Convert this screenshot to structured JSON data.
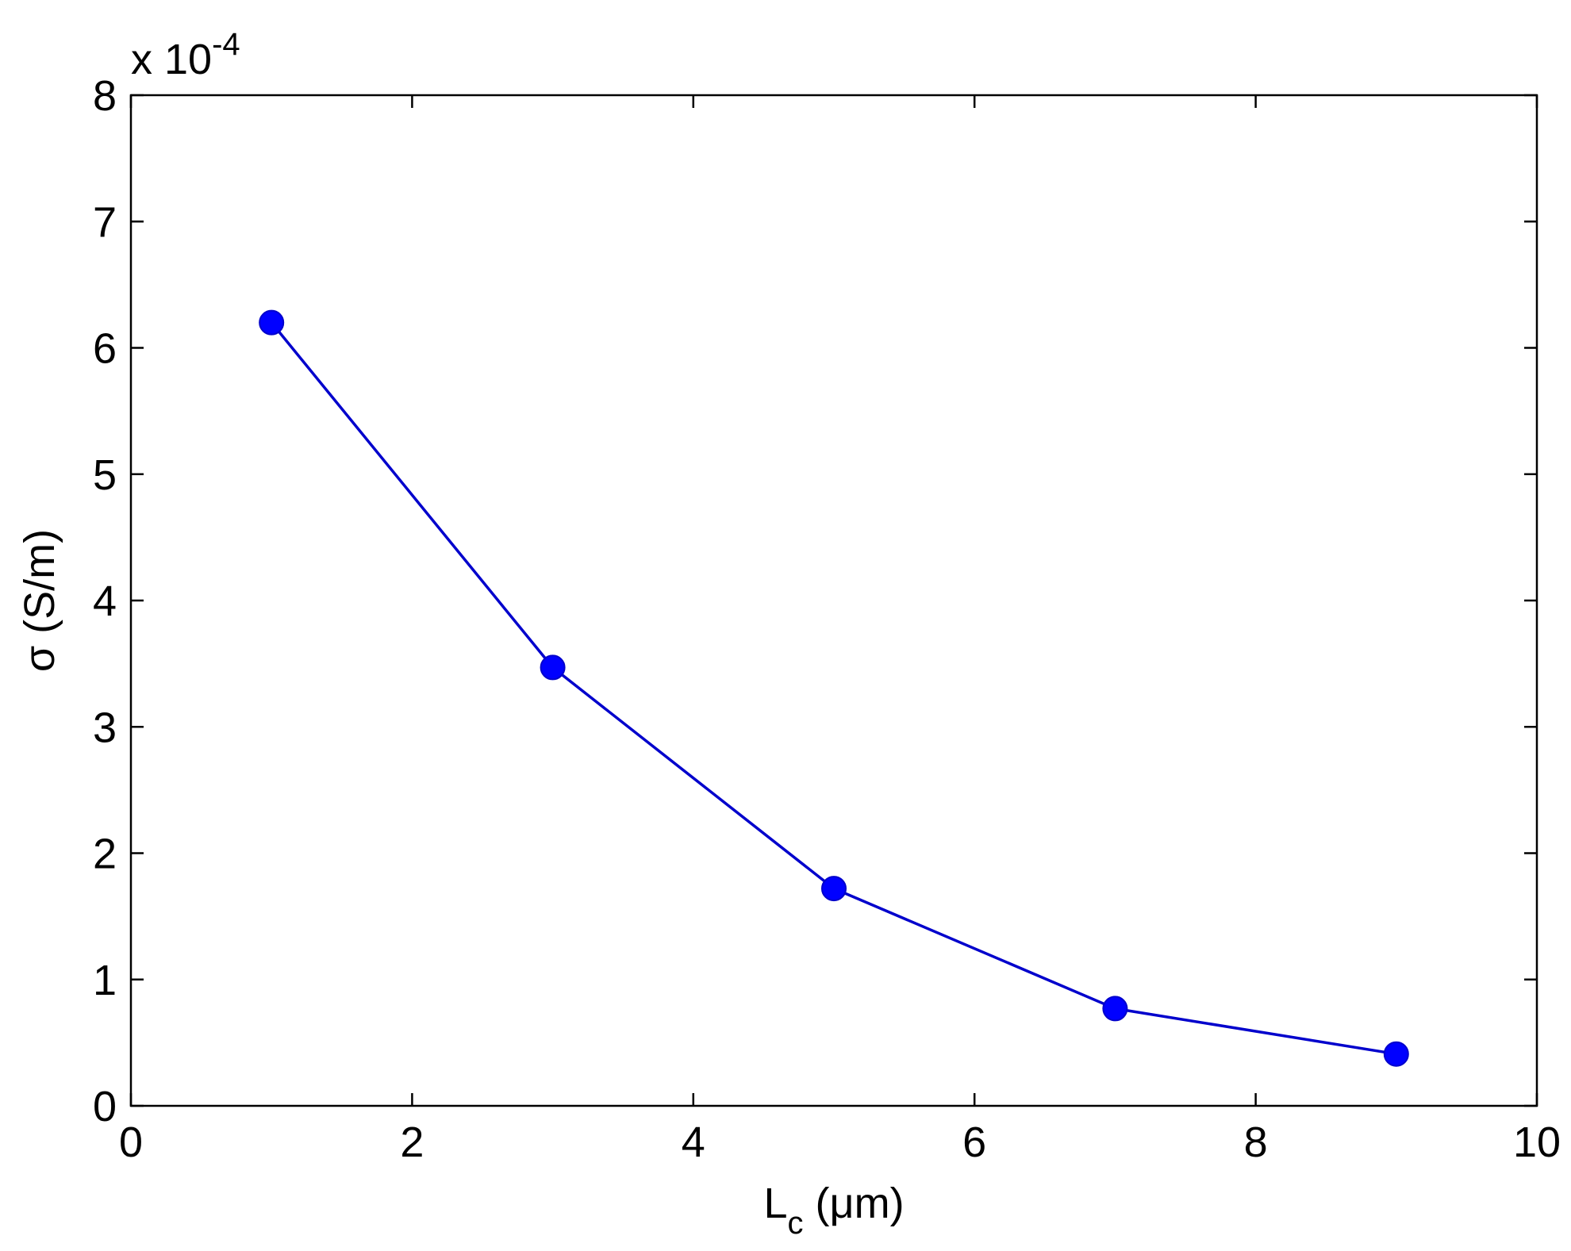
{
  "chart_data": {
    "type": "line",
    "title": "",
    "xlabel": "L",
    "xlabel_sub": "c",
    "xlabel_unit": " (μm)",
    "ylabel": "σ (S/m)",
    "y_multiplier_prefix": "x 10",
    "y_multiplier_exponent": "-4",
    "xlim": [
      0,
      10
    ],
    "ylim": [
      0,
      8
    ],
    "x_ticks": [
      "0",
      "2",
      "4",
      "6",
      "8",
      "10"
    ],
    "y_ticks": [
      "0",
      "1",
      "2",
      "3",
      "4",
      "5",
      "6",
      "7",
      "8"
    ],
    "grid": false,
    "series": [
      {
        "x": [
          1,
          3,
          5,
          7,
          9
        ],
        "y": [
          6.2,
          3.47,
          1.72,
          0.77,
          0.41
        ],
        "color": "#0000cc",
        "marker": "circle",
        "marker_color": "#0000ff"
      }
    ]
  }
}
